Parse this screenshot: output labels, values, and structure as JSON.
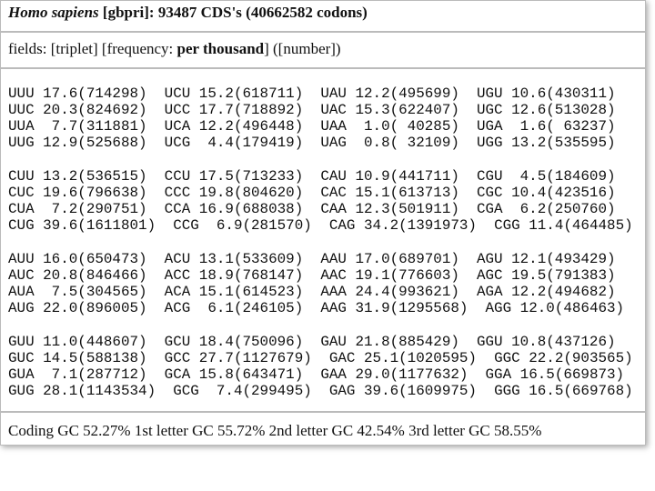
{
  "header": {
    "organism": "Homo sapiens",
    "title_rest": " [gbpri]: 93487 CDS's (40662582 codons)"
  },
  "fields": {
    "prefix": "fields: [triplet] [frequency: ",
    "unit": "per thousand",
    "suffix": "] ([number])"
  },
  "codon_table": {
    "blocks": [
      {
        "rows": [
          [
            "UUU 17.6(714298)",
            "UCU 15.2(618711)",
            "UAU 12.2(495699)",
            "UGU 10.6(430311)"
          ],
          [
            "UUC 20.3(824692)",
            "UCC 17.7(718892)",
            "UAC 15.3(622407)",
            "UGC 12.6(513028)"
          ],
          [
            "UUA  7.7(311881)",
            "UCA 12.2(496448)",
            "UAA  1.0( 40285)",
            "UGA  1.6( 63237)"
          ],
          [
            "UUG 12.9(525688)",
            "UCG  4.4(179419)",
            "UAG  0.8( 32109)",
            "UGG 13.2(535595)"
          ]
        ]
      },
      {
        "rows": [
          [
            "CUU 13.2(536515)",
            "CCU 17.5(713233)",
            "CAU 10.9(441711)",
            "CGU  4.5(184609)"
          ],
          [
            "CUC 19.6(796638)",
            "CCC 19.8(804620)",
            "CAC 15.1(613713)",
            "CGC 10.4(423516)"
          ],
          [
            "CUA  7.2(290751)",
            "CCA 16.9(688038)",
            "CAA 12.3(501911)",
            "CGA  6.2(250760)"
          ],
          [
            "CUG 39.6(1611801)",
            "CCG  6.9(281570)",
            "CAG 34.2(1391973)",
            "CGG 11.4(464485)"
          ]
        ]
      },
      {
        "rows": [
          [
            "AUU 16.0(650473)",
            "ACU 13.1(533609)",
            "AAU 17.0(689701)",
            "AGU 12.1(493429)"
          ],
          [
            "AUC 20.8(846466)",
            "ACC 18.9(768147)",
            "AAC 19.1(776603)",
            "AGC 19.5(791383)"
          ],
          [
            "AUA  7.5(304565)",
            "ACA 15.1(614523)",
            "AAA 24.4(993621)",
            "AGA 12.2(494682)"
          ],
          [
            "AUG 22.0(896005)",
            "ACG  6.1(246105)",
            "AAG 31.9(1295568)",
            "AGG 12.0(486463)"
          ]
        ]
      },
      {
        "rows": [
          [
            "GUU 11.0(448607)",
            "GCU 18.4(750096)",
            "GAU 21.8(885429)",
            "GGU 10.8(437126)"
          ],
          [
            "GUC 14.5(588138)",
            "GCC 27.7(1127679)",
            "GAC 25.1(1020595)",
            "GGC 22.2(903565)"
          ],
          [
            "GUA  7.1(287712)",
            "GCA 15.8(643471)",
            "GAA 29.0(1177632)",
            "GGA 16.5(669873)"
          ],
          [
            "GUG 28.1(1143534)",
            "GCG  7.4(299495)",
            "GAG 39.6(1609975)",
            "GGG 16.5(669768)"
          ]
        ]
      }
    ]
  },
  "footer": {
    "gc_summary": "Coding GC 52.27% 1st letter GC 55.72% 2nd letter GC 42.54% 3rd letter GC 58.55%"
  }
}
